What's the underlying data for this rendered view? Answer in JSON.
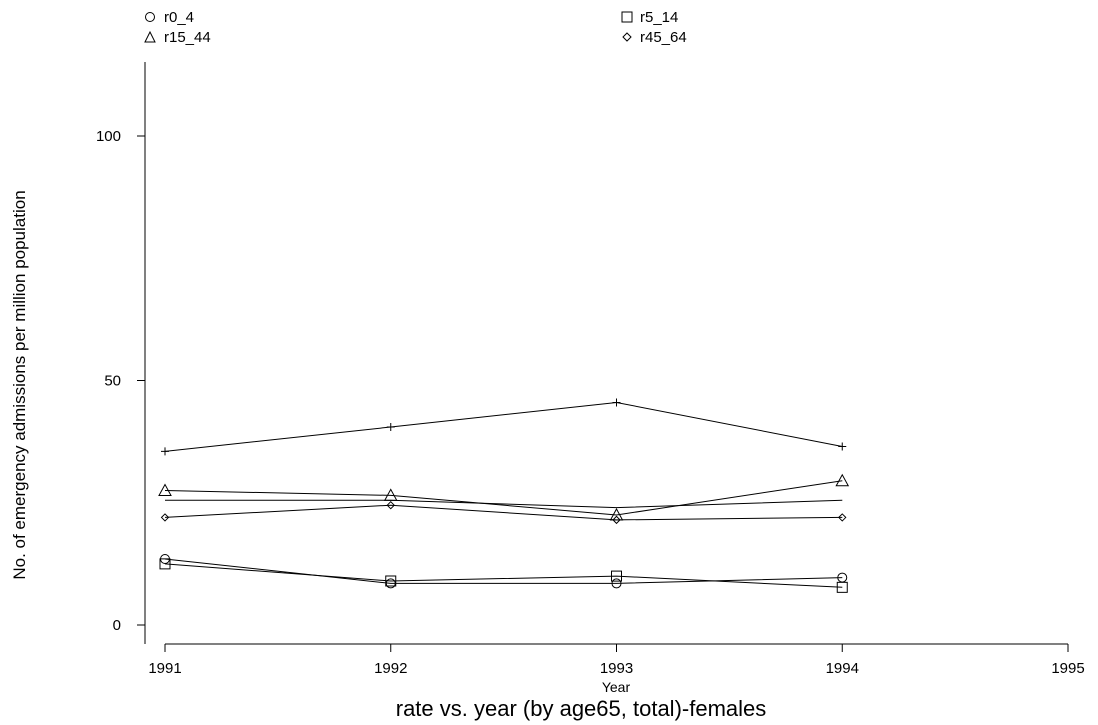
{
  "chart_data": {
    "type": "line",
    "title": "rate vs. year (by age65, total)-females",
    "xlabel": "Year",
    "ylabel": "No. of emergency admissions per million population",
    "x": [
      1991,
      1992,
      1993,
      1994
    ],
    "xlim": [
      1991,
      1995
    ],
    "ylim": [
      0,
      110
    ],
    "xticks": [
      "1991",
      "1992",
      "1993",
      "1994",
      "1995"
    ],
    "yticks": [
      "0",
      "50",
      "100"
    ],
    "grid": false,
    "legend_position": "top",
    "series": [
      {
        "name": "r0_4",
        "marker": "circle",
        "values": [
          13.5,
          8.5,
          8.5,
          9.7
        ]
      },
      {
        "name": "r5_14",
        "marker": "square",
        "values": [
          12.5,
          9.0,
          10.0,
          7.7
        ]
      },
      {
        "name": "r15_44",
        "marker": "triangle",
        "values": [
          27.5,
          26.5,
          22.5,
          29.5
        ]
      },
      {
        "name": "r45_64",
        "marker": "diamond",
        "values": [
          22.0,
          24.5,
          21.5,
          22.0
        ]
      },
      {
        "name": "",
        "marker": "plus",
        "values": [
          35.5,
          40.5,
          45.5,
          36.5
        ]
      },
      {
        "name": "",
        "marker": "none",
        "values": [
          25.5,
          25.5,
          24.0,
          25.5
        ]
      }
    ]
  }
}
